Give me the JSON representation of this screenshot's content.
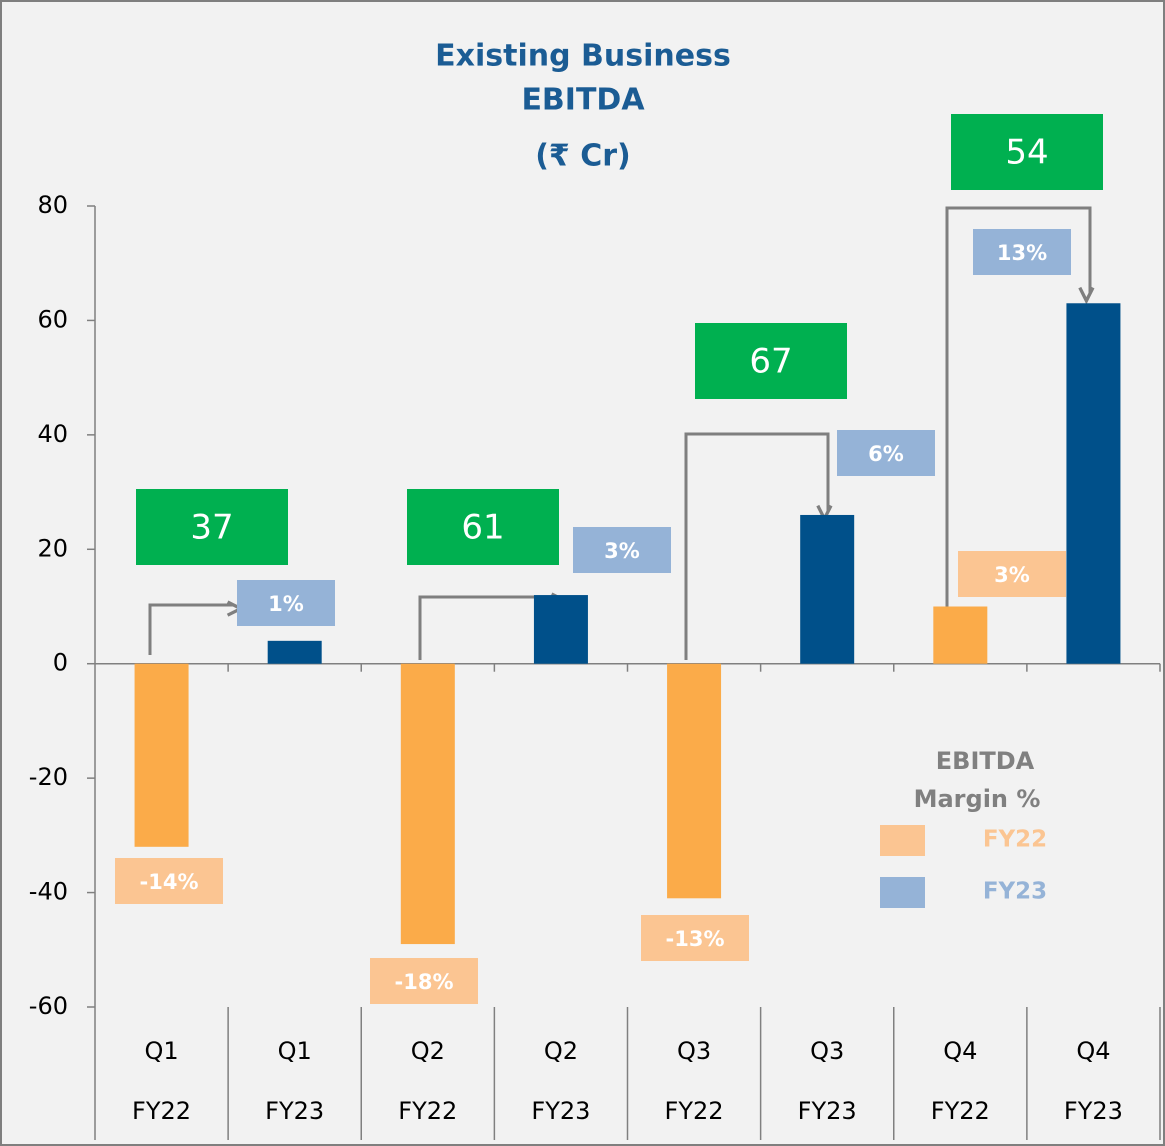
{
  "chart_data": {
    "type": "bar",
    "title": [
      "Existing Business",
      "EBITDA",
      "(₹ Cr)"
    ],
    "categories": [
      [
        "Q1",
        "FY22"
      ],
      [
        "Q1",
        "FY23"
      ],
      [
        "Q2",
        "FY22"
      ],
      [
        "Q2",
        "FY23"
      ],
      [
        "Q3",
        "FY22"
      ],
      [
        "Q3",
        "FY23"
      ],
      [
        "Q4",
        "FY22"
      ],
      [
        "Q4",
        "FY23"
      ]
    ],
    "values": [
      -32,
      4,
      -49,
      12,
      -41,
      26,
      10,
      63
    ],
    "colors": [
      "#fbab49",
      "#00508a",
      "#fbab49",
      "#00508a",
      "#fbab49",
      "#00508a",
      "#fbab49",
      "#00508a"
    ],
    "ylim": [
      -60,
      80
    ],
    "yticks": [
      -60,
      -40,
      -20,
      0,
      20,
      40,
      60,
      80
    ],
    "margin_legend_title": [
      "EBITDA",
      "Margin %"
    ],
    "margin_series": [
      {
        "name": "FY22",
        "color": "#fbc592",
        "values": [
          -14,
          -18,
          -13,
          3
        ],
        "value_labels": [
          "-14%",
          "-18%",
          "-13%",
          "3%"
        ]
      },
      {
        "name": "FY23",
        "color": "#95b3d7",
        "values": [
          1,
          3,
          6,
          13
        ],
        "value_labels": [
          "1%",
          "3%",
          "6%",
          "13%"
        ]
      }
    ],
    "growth": {
      "color": "#00b050",
      "values": [
        37,
        61,
        67,
        54
      ]
    }
  }
}
